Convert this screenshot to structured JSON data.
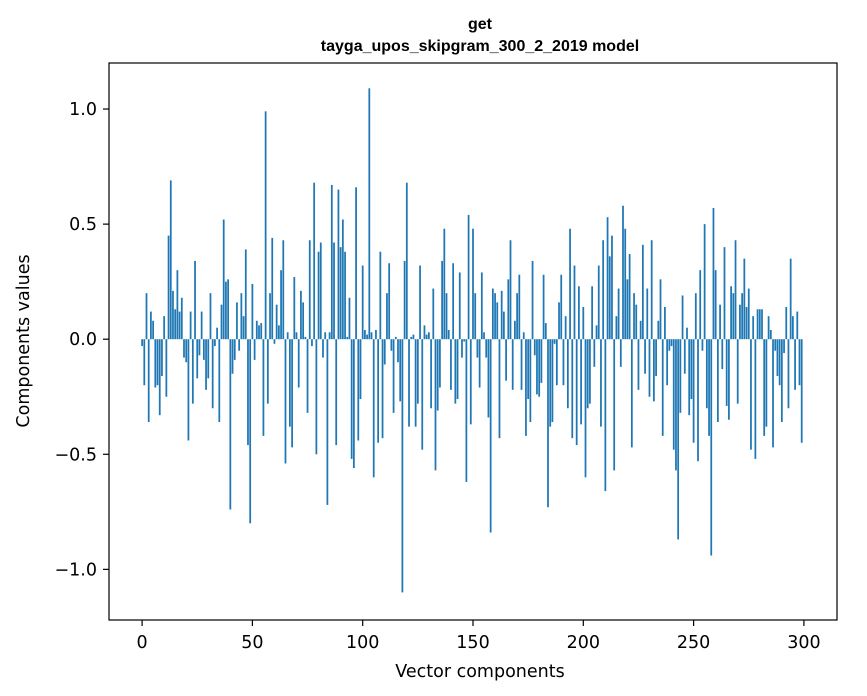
{
  "chart_data": {
    "type": "bar",
    "title_lines": [
      "get",
      "tayga_upos_skipgram_300_2_2019 model"
    ],
    "xlabel": "Vector components",
    "ylabel": "Components values",
    "xlim": [
      -15,
      315
    ],
    "ylim": [
      -1.22,
      1.2
    ],
    "xticks": [
      0,
      50,
      100,
      150,
      200,
      250,
      300
    ],
    "xtick_labels": [
      "0",
      "50",
      "100",
      "150",
      "200",
      "250",
      "300"
    ],
    "yticks": [
      -1.0,
      -0.5,
      0.0,
      0.5,
      1.0
    ],
    "ytick_labels": [
      "−1.0",
      "−0.5",
      "0.0",
      "0.5",
      "1.0"
    ],
    "grid": false,
    "bar_color": "#1f77b4",
    "values": [
      -0.03,
      -0.2,
      0.2,
      -0.36,
      0.12,
      0.08,
      -0.21,
      -0.2,
      -0.33,
      -0.16,
      0.1,
      -0.25,
      0.45,
      0.69,
      0.21,
      0.13,
      0.3,
      0.12,
      0.18,
      -0.08,
      -0.1,
      -0.44,
      0.12,
      -0.28,
      0.34,
      -0.17,
      -0.07,
      0.12,
      -0.09,
      -0.22,
      -0.17,
      0.2,
      -0.3,
      -0.03,
      0.05,
      -0.36,
      0.15,
      0.52,
      0.25,
      0.26,
      -0.74,
      -0.15,
      -0.09,
      0.16,
      -0.05,
      0.2,
      0.1,
      0.39,
      -0.46,
      -0.8,
      0.24,
      -0.09,
      0.08,
      0.06,
      0.07,
      -0.42,
      0.99,
      -0.28,
      0.2,
      0.44,
      -0.02,
      0.15,
      0.06,
      0.3,
      0.43,
      -0.54,
      0.03,
      -0.38,
      -0.47,
      0.27,
      0.03,
      -0.21,
      0.21,
      0.16,
      0.01,
      -0.32,
      0.43,
      -0.03,
      0.68,
      -0.5,
      0.38,
      0.42,
      -0.08,
      0.03,
      -0.72,
      0.03,
      0.67,
      0.42,
      -0.46,
      0.65,
      0.4,
      0.52,
      0.38,
      0.01,
      0.18,
      -0.52,
      -0.56,
      0.66,
      -0.44,
      -0.26,
      0.32,
      0.04,
      0.02,
      1.09,
      0.03,
      -0.6,
      0.04,
      -0.45,
      0.38,
      -0.43,
      -0.11,
      0.2,
      0.33,
      -0.05,
      -0.32,
      0.01,
      -0.1,
      -0.27,
      -1.1,
      0.34,
      0.68,
      -0.38,
      0.01,
      0.02,
      -0.38,
      -0.28,
      0.32,
      -0.48,
      0.06,
      0.02,
      0.03,
      -0.3,
      0.22,
      -0.57,
      -0.31,
      -0.21,
      0.34,
      0.48,
      0.2,
      0.04,
      -0.22,
      0.33,
      -0.28,
      -0.26,
      0.29,
      -0.08,
      -0.01,
      -0.62,
      0.54,
      -0.37,
      0.48,
      0.2,
      -0.08,
      -0.21,
      0.29,
      0.03,
      -0.08,
      -0.34,
      -0.84,
      0.22,
      0.2,
      0.16,
      -0.43,
      0.21,
      0.12,
      -0.18,
      0.26,
      0.43,
      -0.22,
      0.08,
      0.2,
      0.28,
      -0.22,
      0.03,
      -0.42,
      -0.26,
      -0.36,
      0.34,
      -0.07,
      -0.24,
      -0.25,
      -0.19,
      0.28,
      0.07,
      -0.73,
      -0.38,
      -0.36,
      -0.02,
      -0.2,
      0.16,
      0.28,
      -0.2,
      0.1,
      -0.3,
      0.48,
      -0.43,
      0.32,
      -0.46,
      0.23,
      -0.37,
      0.14,
      -0.6,
      -0.3,
      -0.28,
      0.23,
      -0.12,
      0.06,
      0.32,
      -0.38,
      0.43,
      -0.66,
      0.53,
      0.36,
      0.45,
      -0.57,
      0.1,
      0.22,
      -0.12,
      0.58,
      0.48,
      0.26,
      0.37,
      -0.47,
      0.2,
      0.15,
      -0.22,
      0.08,
      0.41,
      -0.15,
      0.22,
      -0.25,
      0.43,
      -0.27,
      -0.16,
      0.08,
      0.26,
      -0.42,
      0.14,
      -0.2,
      -0.05,
      -0.03,
      -0.48,
      -0.57,
      -0.87,
      -0.32,
      0.19,
      -0.15,
      0.05,
      -0.33,
      -0.26,
      -0.45,
      0.2,
      -0.53,
      0.3,
      -0.05,
      0.5,
      -0.3,
      -0.42,
      -0.94,
      0.57,
      0.3,
      -0.36,
      0.15,
      -0.13,
      0.4,
      -0.29,
      -0.35,
      0.23,
      0.2,
      0.43,
      -0.28,
      0.15,
      0.2,
      0.35,
      0.14,
      0.22,
      -0.48,
      0.1,
      -0.52,
      0.13,
      0.13,
      0.13,
      -0.42,
      -0.38,
      0.1,
      0.04,
      -0.47,
      -0.05,
      -0.16,
      -0.2,
      -0.36,
      -0.06,
      0.14,
      -0.3,
      0.35,
      0.1,
      -0.22,
      0.12,
      -0.2,
      -0.45
    ]
  }
}
